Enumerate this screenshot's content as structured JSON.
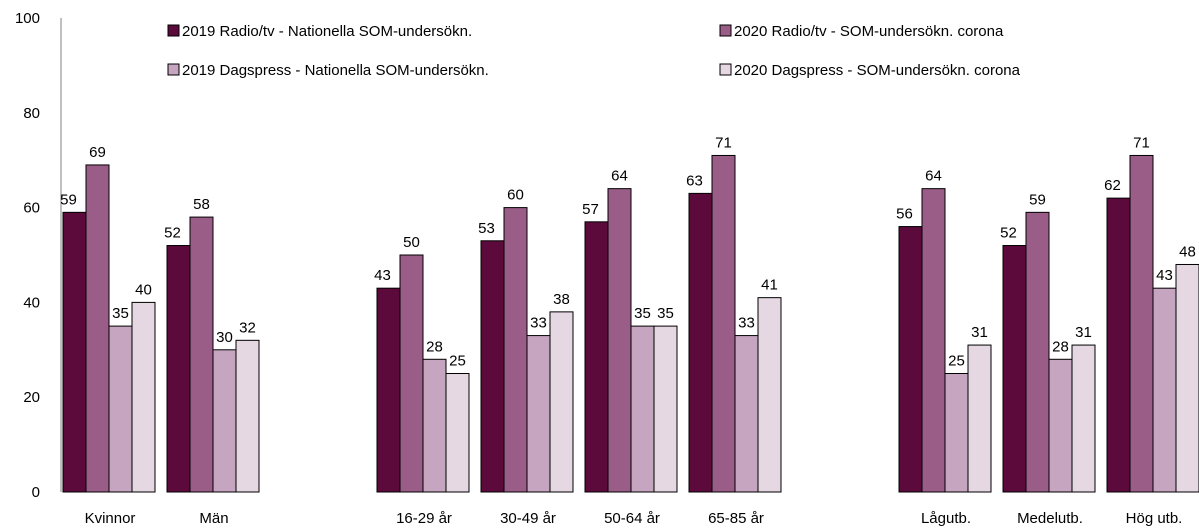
{
  "chart_data": {
    "type": "bar",
    "title": "",
    "xlabel": "",
    "ylabel": "",
    "ylim": [
      0,
      100
    ],
    "yticks": [
      0,
      20,
      40,
      60,
      80,
      100
    ],
    "grid": false,
    "legend_position": "top",
    "categories": [
      "Kvinnor",
      "Män",
      "16-29 år",
      "30-49 år",
      "50-64 år",
      "65-85 år",
      "Lågutb.",
      "Medelutb.",
      "Hög utb."
    ],
    "category_groups": [
      [
        0,
        1
      ],
      [
        2,
        3,
        4,
        5
      ],
      [
        6,
        7,
        8
      ]
    ],
    "series": [
      {
        "name": "2019 Radio/tv - Nationella SOM-undersökn.",
        "color": "#5c0a3c",
        "values": [
          59,
          52,
          43,
          53,
          57,
          63,
          56,
          52,
          62
        ]
      },
      {
        "name": "2020 Radio/tv - SOM-undersökn. corona",
        "color": "#9a5d88",
        "values": [
          69,
          58,
          50,
          60,
          64,
          71,
          64,
          59,
          71
        ]
      },
      {
        "name": "2019 Dagspress - Nationella SOM-undersökn.",
        "color": "#c5a5bf",
        "values": [
          35,
          30,
          28,
          33,
          35,
          33,
          25,
          28,
          43
        ]
      },
      {
        "name": "2020 Dagspress - SOM-undersökn. corona",
        "color": "#e5d8e2",
        "values": [
          40,
          32,
          25,
          38,
          35,
          41,
          31,
          31,
          48
        ]
      }
    ]
  }
}
